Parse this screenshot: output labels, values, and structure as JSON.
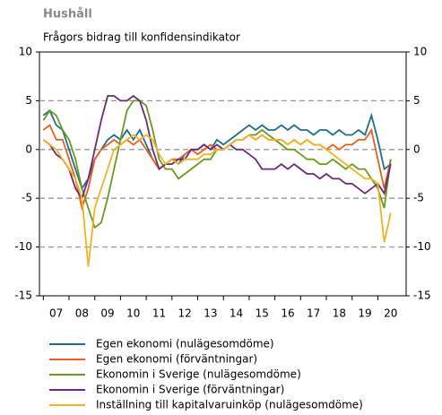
{
  "chart_data": {
    "type": "line",
    "title": "Hushåll",
    "subtitle": "Frågors bidrag till konfidensindikator",
    "x": [
      2007,
      2007.25,
      2007.5,
      2007.75,
      2008,
      2008.25,
      2008.5,
      2008.75,
      2009,
      2009.25,
      2009.5,
      2009.75,
      2010,
      2010.25,
      2010.5,
      2010.75,
      2011,
      2011.25,
      2011.5,
      2011.75,
      2012,
      2012.25,
      2012.5,
      2012.75,
      2013,
      2013.25,
      2013.5,
      2013.75,
      2014,
      2014.25,
      2014.5,
      2014.75,
      2015,
      2015.25,
      2015.5,
      2015.75,
      2016,
      2016.25,
      2016.5,
      2016.75,
      2017,
      2017.25,
      2017.5,
      2017.75,
      2018,
      2018.25,
      2018.5,
      2018.75,
      2019,
      2019.25,
      2019.5,
      2019.75,
      2020,
      2020.25,
      2020.5
    ],
    "series": [
      {
        "name": "Egen ekonomi (nulägesomdöme)",
        "color": "#1f6e8c",
        "values": [
          3.5,
          4,
          2.5,
          2,
          0,
          -2,
          -4,
          -3,
          -1,
          0,
          1,
          1.5,
          1,
          2,
          1,
          2,
          0.5,
          -1,
          -2,
          -1.5,
          -1,
          -1.5,
          -0.5,
          0,
          0,
          0.5,
          0,
          1,
          0.5,
          1,
          1.5,
          2,
          2.5,
          2,
          2.5,
          2,
          2,
          2.5,
          2,
          2.5,
          2,
          2,
          1.5,
          2,
          2,
          1.5,
          2,
          1.5,
          1.5,
          2,
          1.5,
          3.5,
          1,
          -2,
          -1.5
        ]
      },
      {
        "name": "Egen ekonomi (förväntningar)",
        "color": "#e8601c",
        "values": [
          2,
          2.5,
          1,
          1,
          -1,
          -3,
          -6,
          -4,
          -1,
          0,
          0.5,
          1,
          0.5,
          1,
          0.5,
          1,
          0,
          -1,
          -2,
          -1.5,
          -1,
          -1,
          -0.5,
          0,
          -0.5,
          0,
          0.5,
          0,
          0,
          0.5,
          1,
          1,
          1.5,
          1,
          1.5,
          1,
          1,
          1,
          0.5,
          1,
          0.5,
          1,
          0.5,
          0.5,
          0,
          0.5,
          0,
          0.5,
          0.5,
          1,
          1,
          2,
          -1,
          -4,
          -1
        ]
      },
      {
        "name": "Ekonomin i Sverige (nulägesomdöme)",
        "color": "#6a9a1f",
        "values": [
          3,
          4,
          3.5,
          2,
          1,
          -1,
          -4,
          -6,
          -8,
          -7.5,
          -5,
          -2,
          1,
          4,
          5,
          5,
          4.5,
          2,
          -1,
          -2,
          -2,
          -3,
          -2.5,
          -2,
          -1.5,
          -1,
          -1,
          0,
          0,
          0.5,
          1,
          1,
          1.5,
          1.5,
          2,
          1.5,
          1,
          0.5,
          0,
          0,
          -0.5,
          -1,
          -1,
          -1.5,
          -1.5,
          -1,
          -1.5,
          -2,
          -1.5,
          -2,
          -2,
          -3,
          -4,
          -6,
          -1
        ]
      },
      {
        "name": "Ekonomin i Sverige (förväntningar)",
        "color": "#6b2a7a",
        "values": [
          1,
          0.5,
          -0.5,
          -1,
          -2,
          -4,
          -5,
          -3,
          0,
          3,
          5.5,
          5.5,
          5,
          5,
          5.5,
          5,
          3,
          0,
          -2,
          -1.5,
          -1.5,
          -1,
          -1,
          0,
          0,
          0.5,
          0,
          0.5,
          0,
          0.5,
          0,
          0,
          -0.5,
          -1,
          -2,
          -2,
          -2,
          -1.5,
          -2,
          -1.5,
          -2,
          -2.5,
          -2.5,
          -3,
          -2.5,
          -3,
          -3,
          -3.5,
          -3.5,
          -4,
          -4.5,
          -4,
          -3.5,
          -4.5,
          -1.5
        ]
      },
      {
        "name": "Inställning till kapitalvaruinköp (nulägesomdöme)",
        "color": "#f0b323",
        "values": [
          1,
          0.5,
          0,
          -1,
          -2,
          -3,
          -5,
          -12,
          -6,
          -4,
          -2,
          0,
          0.5,
          1,
          1.5,
          1,
          1.5,
          1,
          -0.5,
          -1.5,
          -1,
          -1.5,
          -1,
          -1,
          -1,
          -0.5,
          -0.5,
          0,
          0,
          0.5,
          1,
          1,
          1.5,
          1,
          1.5,
          1,
          1,
          1,
          0.5,
          1,
          0.5,
          1,
          0.5,
          0.5,
          0,
          -0.5,
          -1,
          -1.5,
          -2,
          -2.5,
          -3,
          -3,
          -3.5,
          -9.5,
          -6.5
        ]
      }
    ],
    "xlim": [
      2006.85,
      2021.1
    ],
    "xticks": [
      {
        "value": 2007.5,
        "label": "07"
      },
      {
        "value": 2008.5,
        "label": "08"
      },
      {
        "value": 2009.5,
        "label": "09"
      },
      {
        "value": 2010.5,
        "label": "10"
      },
      {
        "value": 2011.5,
        "label": "11"
      },
      {
        "value": 2012.5,
        "label": "12"
      },
      {
        "value": 2013.5,
        "label": "13"
      },
      {
        "value": 2014.5,
        "label": "14"
      },
      {
        "value": 2015.5,
        "label": "15"
      },
      {
        "value": 2016.5,
        "label": "16"
      },
      {
        "value": 2017.5,
        "label": "17"
      },
      {
        "value": 2018.5,
        "label": "18"
      },
      {
        "value": 2019.5,
        "label": "19"
      },
      {
        "value": 2020.5,
        "label": "20"
      }
    ],
    "ylim": [
      -15,
      10
    ],
    "yticks": [
      -15,
      -10,
      -5,
      0,
      5,
      10
    ],
    "grid": true
  }
}
